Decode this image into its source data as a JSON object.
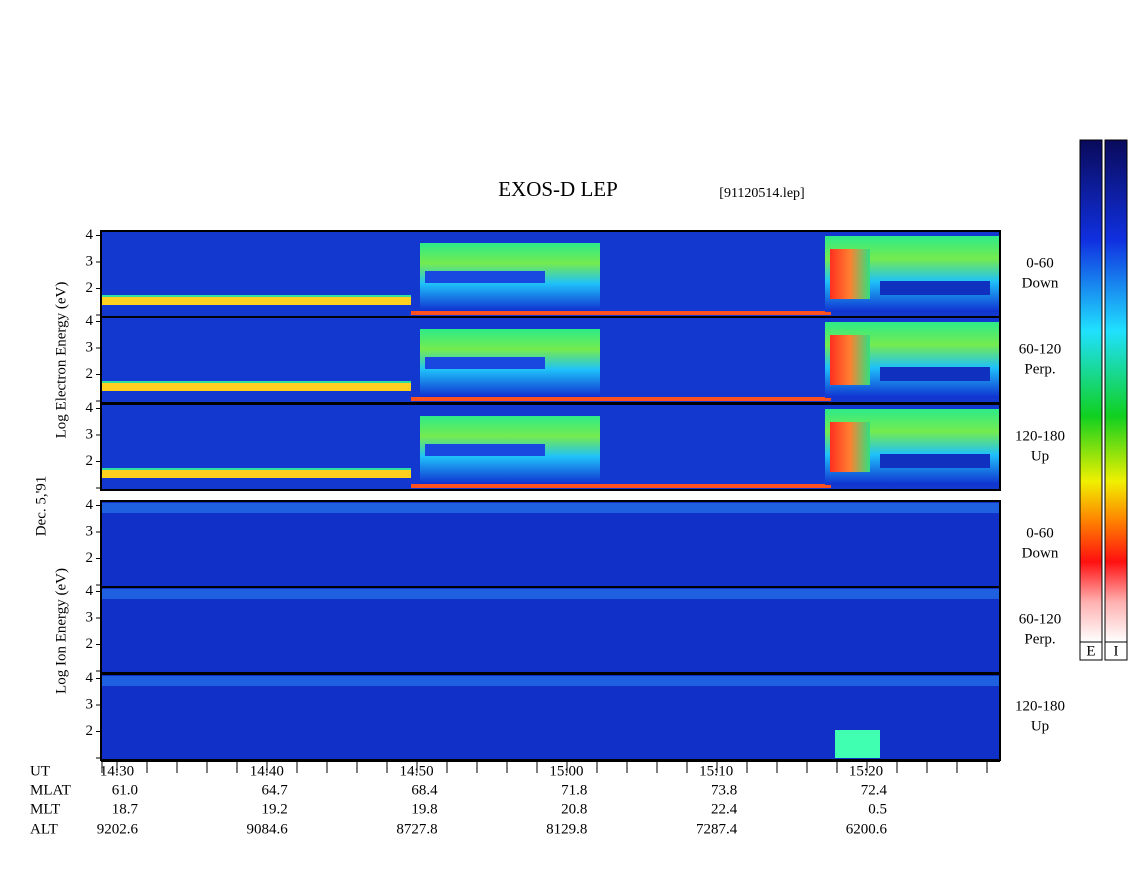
{
  "header": {
    "title": "EXOS-D LEP",
    "file": "[91120514.lep]",
    "date": "Dec. 5,'91"
  },
  "electron": {
    "axis_label": "Log  Electron  Energy (eV)",
    "panels": [
      {
        "angle": "0-60",
        "direction": "Down"
      },
      {
        "angle": "60-120",
        "direction": "Perp."
      },
      {
        "angle": "120-180",
        "direction": "Up"
      }
    ]
  },
  "ion": {
    "axis_label": "Log  Ion  Energy (eV)",
    "panels": [
      {
        "angle": "0-60",
        "direction": "Down"
      },
      {
        "angle": "60-120",
        "direction": "Perp."
      },
      {
        "angle": "120-180",
        "direction": "Up"
      }
    ]
  },
  "energy_ticks": [
    2,
    3,
    4
  ],
  "colorbar": {
    "labels": [
      "E",
      "I"
    ]
  },
  "orbit_table": {
    "rows": [
      {
        "label": "UT",
        "values": [
          "14:30",
          "14:40",
          "14:50",
          "15:00",
          "15:10",
          "15:20"
        ]
      },
      {
        "label": "MLAT",
        "values": [
          "61.0",
          "64.7",
          "68.4",
          "71.8",
          "73.8",
          "72.4"
        ]
      },
      {
        "label": "MLT",
        "values": [
          "18.7",
          "19.2",
          "19.8",
          "20.8",
          "22.4",
          "0.5"
        ]
      },
      {
        "label": "ALT",
        "values": [
          "9202.6",
          "9084.6",
          "8727.8",
          "8129.8",
          "7287.4",
          "6200.6"
        ]
      }
    ]
  }
}
